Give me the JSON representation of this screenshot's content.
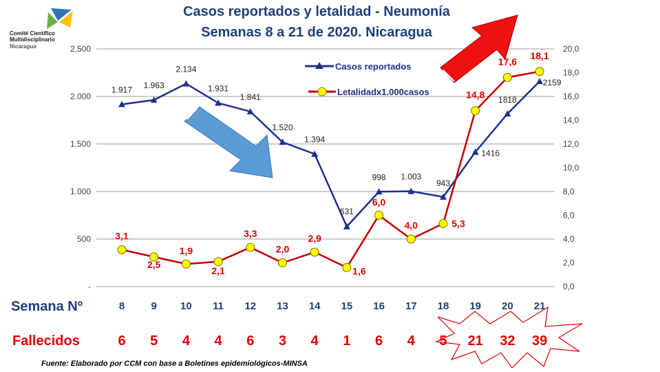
{
  "logo": {
    "line1": "Comité Científico",
    "line2": "Multidisciplinario",
    "line3": "Nicaragua"
  },
  "colors": {
    "casos": "#1f2f8f",
    "letalidad": "#c00000",
    "marker_fill": "#ffff00",
    "title": "#1f3f78",
    "semana_label": "#1f3f78",
    "fallecidos": "#e00000",
    "arrow_blue": "#5b9bd5",
    "arrow_red": "#ee1111"
  },
  "chart_data": {
    "type": "line",
    "title": "Casos reportados y letalidad - Neumonía",
    "subtitle": "Semanas 8 a 21 de 2020. Nicaragua",
    "categories": [
      "8",
      "9",
      "10",
      "11",
      "12",
      "13",
      "14",
      "15",
      "16",
      "17",
      "18",
      "19",
      "20",
      "21"
    ],
    "x_row_label": "Semana Nº",
    "ylim_left": [
      0,
      2500
    ],
    "yticks_left": [
      "-",
      "500",
      "1.000",
      "1.500",
      "2.000",
      "2.500"
    ],
    "ylim_right": [
      0,
      20
    ],
    "yticks_right": [
      "0,0",
      "2,0",
      "4,0",
      "6,0",
      "8,0",
      "10,0",
      "12,0",
      "14,0",
      "16,0",
      "18,0",
      "20,0"
    ],
    "grid": true,
    "legend_position": "top-center",
    "series": [
      {
        "name": "Casos reportados",
        "axis": "left",
        "marker": "triangle",
        "values": [
          1917,
          1963,
          2134,
          1931,
          1841,
          1520,
          1394,
          631,
          998,
          1003,
          943,
          1416,
          1818,
          2159
        ],
        "labels": [
          "1.917",
          "1.963",
          "2.134",
          "1.931",
          "1.841",
          "1.520",
          "1.394",
          "631",
          "998",
          "1.003",
          "943",
          "1416",
          "1818",
          "2159"
        ]
      },
      {
        "name": "Letalidadx1.000casos",
        "axis": "right",
        "marker": "circle",
        "values": [
          3.1,
          2.5,
          1.9,
          2.1,
          3.3,
          2.0,
          2.9,
          1.6,
          6.0,
          4.0,
          5.3,
          14.8,
          17.6,
          18.1
        ],
        "labels": [
          "3,1",
          "2,5",
          "1,9",
          "2,1",
          "3,3",
          "2,0",
          "2,9",
          "1,6",
          "6,0",
          "4,0",
          "5,3",
          "14,8",
          "17,6",
          "18,1"
        ]
      }
    ],
    "fallecidos_label": "Fallecidos",
    "fallecidos": [
      "6",
      "5",
      "4",
      "4",
      "6",
      "3",
      "4",
      "1",
      "6",
      "4",
      "5",
      "21",
      "32",
      "39"
    ]
  },
  "source": "Fuente:  Elaborado por CCM con base a Boletines  epidemiológicos-MINSA"
}
